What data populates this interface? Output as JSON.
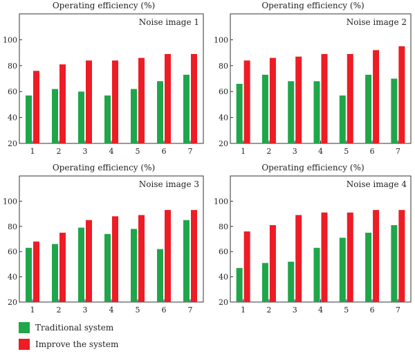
{
  "colors": {
    "traditional": "#1fa64a",
    "improved": "#ee1c25",
    "axis": "#333333"
  },
  "legend": [
    {
      "label": "Traditional system",
      "color": "#1fa64a"
    },
    {
      "label": "Improve the system",
      "color": "#ee1c25"
    }
  ],
  "chart_data": [
    {
      "type": "bar",
      "title": "Operating efficiency (%)",
      "annotation": "Noise image 1",
      "categories": [
        "1",
        "2",
        "3",
        "4",
        "5",
        "6",
        "7"
      ],
      "series": [
        {
          "name": "Traditional system",
          "values": [
            57,
            62,
            60,
            57,
            62,
            68,
            73
          ]
        },
        {
          "name": "Improve the system",
          "values": [
            76,
            81,
            84,
            84,
            86,
            89,
            89
          ]
        }
      ],
      "yticks": [
        20,
        40,
        60,
        80,
        100
      ],
      "ylim": [
        20,
        120
      ]
    },
    {
      "type": "bar",
      "title": "Operating efficiency (%)",
      "annotation": "Noise image 2",
      "categories": [
        "1",
        "2",
        "3",
        "4",
        "5",
        "6",
        "7"
      ],
      "series": [
        {
          "name": "Traditional system",
          "values": [
            66,
            73,
            68,
            68,
            57,
            73,
            70
          ]
        },
        {
          "name": "Improve the system",
          "values": [
            84,
            86,
            87,
            89,
            89,
            92,
            95
          ]
        }
      ],
      "yticks": [
        20,
        40,
        60,
        80,
        100
      ],
      "ylim": [
        20,
        120
      ]
    },
    {
      "type": "bar",
      "title": "Operating efficiency (%)",
      "annotation": "Noise image 3",
      "categories": [
        "1",
        "2",
        "3",
        "4",
        "5",
        "6",
        "7"
      ],
      "series": [
        {
          "name": "Traditional system",
          "values": [
            63,
            66,
            79,
            74,
            78,
            62,
            85
          ]
        },
        {
          "name": "Improve the system",
          "values": [
            68,
            75,
            85,
            88,
            89,
            93,
            93
          ]
        }
      ],
      "yticks": [
        20,
        40,
        60,
        80,
        100
      ],
      "ylim": [
        20,
        120
      ]
    },
    {
      "type": "bar",
      "title": "Operating efficiency (%)",
      "annotation": "Noise image 4",
      "categories": [
        "1",
        "2",
        "3",
        "4",
        "5",
        "6",
        "7"
      ],
      "series": [
        {
          "name": "Traditional system",
          "values": [
            47,
            51,
            52,
            63,
            71,
            75,
            81
          ]
        },
        {
          "name": "Improve the system",
          "values": [
            76,
            81,
            89,
            91,
            91,
            93,
            93
          ]
        }
      ],
      "yticks": [
        20,
        40,
        60,
        80,
        100
      ],
      "ylim": [
        20,
        120
      ]
    }
  ]
}
